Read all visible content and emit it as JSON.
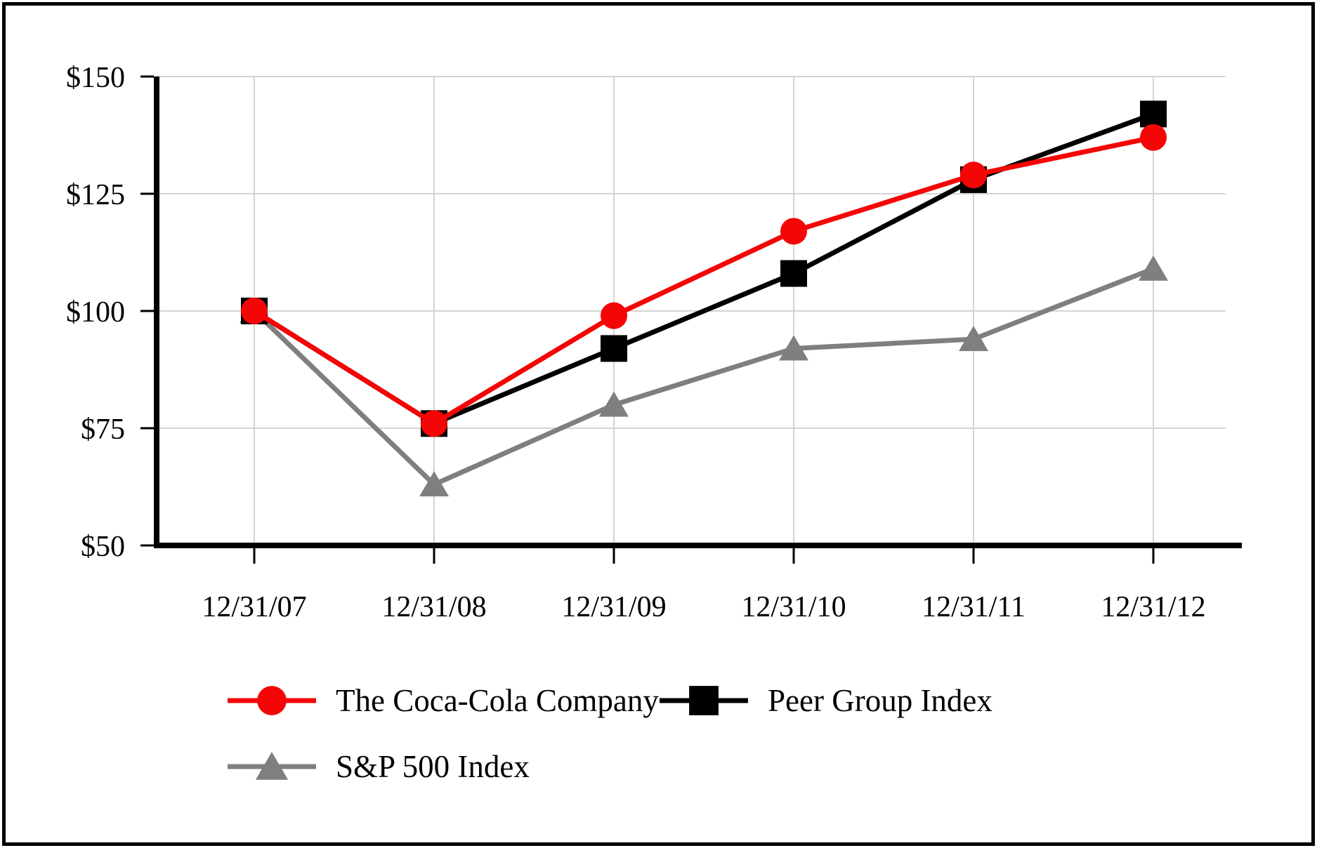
{
  "chart_data": {
    "type": "line",
    "categories": [
      "12/31/07",
      "12/31/08",
      "12/31/09",
      "12/31/10",
      "12/31/11",
      "12/31/12"
    ],
    "series": [
      {
        "name": "The Coca-Cola Company",
        "color": "#F40606",
        "marker": "circle",
        "values": [
          100,
          76,
          99,
          117,
          129,
          137
        ]
      },
      {
        "name": "Peer Group Index",
        "color": "#000000",
        "marker": "square",
        "values": [
          100,
          76,
          92,
          108,
          128,
          142
        ]
      },
      {
        "name": "S&P 500 Index",
        "color": "#7F7F7F",
        "marker": "triangle",
        "values": [
          100,
          63,
          80,
          92,
          94,
          109
        ]
      }
    ],
    "y_ticks": [
      {
        "label": "$50",
        "value": 50
      },
      {
        "label": "$75",
        "value": 75
      },
      {
        "label": "$100",
        "value": 100
      },
      {
        "label": "$125",
        "value": 125
      },
      {
        "label": "$150",
        "value": 150
      }
    ],
    "ylim": [
      50,
      150
    ],
    "xlabel": "",
    "ylabel": "",
    "grid": true,
    "grid_color": "#D4D4D4",
    "axis_color": "#000000",
    "legend_position": "bottom-left"
  }
}
